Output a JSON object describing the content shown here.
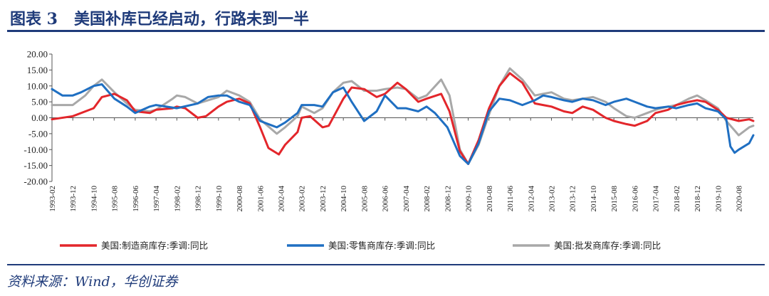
{
  "header": {
    "title": "图表 3   美国补库已经启动，行路未到一半"
  },
  "footer": {
    "source": "资料来源：Wind，华创证券"
  },
  "chart_data": {
    "type": "line",
    "ylim": [
      -20,
      20
    ],
    "ytick_values": [
      20,
      15,
      10,
      5,
      0,
      -5,
      -10,
      -15,
      -20
    ],
    "ytick_labels": [
      "20.00",
      "15.00",
      "10.00",
      "5.00",
      "0.00",
      "-5.00",
      "-10.00",
      "-15.00",
      "-20.00"
    ],
    "xlim": [
      "1993-02",
      "2021-03"
    ],
    "xtick_labels": [
      "1993-02",
      "1993-12",
      "1994-10",
      "1995-08",
      "1996-06",
      "1997-04",
      "1998-02",
      "1998-12",
      "1999-10",
      "2000-08",
      "2001-06",
      "2002-04",
      "2003-02",
      "2003-12",
      "2004-10",
      "2005-08",
      "2006-06",
      "2007-04",
      "2008-02",
      "2008-12",
      "2009-10",
      "2010-08",
      "2011-06",
      "2012-04",
      "2013-02",
      "2013-12",
      "2014-10",
      "2015-08",
      "2016-06",
      "2017-04",
      "2018-02",
      "2018-12",
      "2019-10",
      "2020-08"
    ],
    "legend_position": "bottom",
    "grid": false,
    "series": [
      {
        "name": "美国:制造商库存:季调:同比",
        "color": "#e3262b",
        "points": [
          [
            "1993-02",
            -0.5
          ],
          [
            "1993-12",
            0.5
          ],
          [
            "1994-10",
            3.0
          ],
          [
            "1995-02",
            6.5
          ],
          [
            "1995-08",
            7.5
          ],
          [
            "1996-02",
            5.5
          ],
          [
            "1996-06",
            2.0
          ],
          [
            "1997-01",
            1.5
          ],
          [
            "1997-04",
            2.5
          ],
          [
            "1997-12",
            3.0
          ],
          [
            "1998-02",
            3.5
          ],
          [
            "1998-06",
            3.0
          ],
          [
            "1998-12",
            0.0
          ],
          [
            "1999-04",
            0.5
          ],
          [
            "1999-10",
            3.5
          ],
          [
            "2000-02",
            5.0
          ],
          [
            "2000-08",
            6.0
          ],
          [
            "2001-01",
            4.5
          ],
          [
            "2001-06",
            -3.0
          ],
          [
            "2001-10",
            -9.5
          ],
          [
            "2002-03",
            -11.5
          ],
          [
            "2002-06",
            -8.5
          ],
          [
            "2002-12",
            -4.5
          ],
          [
            "2003-02",
            0.0
          ],
          [
            "2003-06",
            0.5
          ],
          [
            "2003-12",
            -3.0
          ],
          [
            "2004-03",
            -2.5
          ],
          [
            "2004-10",
            6.0
          ],
          [
            "2005-02",
            9.5
          ],
          [
            "2005-08",
            9.0
          ],
          [
            "2006-02",
            6.5
          ],
          [
            "2006-06",
            7.5
          ],
          [
            "2006-12",
            11.0
          ],
          [
            "2007-04",
            9.0
          ],
          [
            "2007-10",
            5.0
          ],
          [
            "2008-02",
            6.0
          ],
          [
            "2008-09",
            7.5
          ],
          [
            "2009-01",
            2.0
          ],
          [
            "2009-06",
            -10.5
          ],
          [
            "2009-10",
            -14.5
          ],
          [
            "2010-03",
            -7.0
          ],
          [
            "2010-08",
            3.0
          ],
          [
            "2011-01",
            10.0
          ],
          [
            "2011-06",
            14.0
          ],
          [
            "2011-12",
            11.0
          ],
          [
            "2012-06",
            4.5
          ],
          [
            "2012-10",
            4.0
          ],
          [
            "2013-02",
            3.5
          ],
          [
            "2013-08",
            2.0
          ],
          [
            "2013-12",
            1.5
          ],
          [
            "2014-05",
            3.5
          ],
          [
            "2014-10",
            2.5
          ],
          [
            "2015-04",
            0.0
          ],
          [
            "2015-08",
            -1.0
          ],
          [
            "2016-02",
            -2.0
          ],
          [
            "2016-06",
            -2.5
          ],
          [
            "2016-12",
            -1.0
          ],
          [
            "2017-04",
            1.5
          ],
          [
            "2017-10",
            2.5
          ],
          [
            "2018-02",
            4.0
          ],
          [
            "2018-08",
            5.0
          ],
          [
            "2018-12",
            5.5
          ],
          [
            "2019-04",
            5.0
          ],
          [
            "2019-10",
            2.5
          ],
          [
            "2020-02",
            0.0
          ],
          [
            "2020-08",
            -1.0
          ],
          [
            "2021-01",
            -0.5
          ],
          [
            "2021-03",
            -1.0
          ]
        ]
      },
      {
        "name": "美国:零售商库存:季调:同比",
        "color": "#1f6fc2",
        "points": [
          [
            "1993-02",
            9.0
          ],
          [
            "1993-07",
            7.0
          ],
          [
            "1993-12",
            7.0
          ],
          [
            "1994-04",
            8.0
          ],
          [
            "1994-10",
            10.0
          ],
          [
            "1995-02",
            10.5
          ],
          [
            "1995-08",
            6.0
          ],
          [
            "1996-02",
            3.5
          ],
          [
            "1996-06",
            1.5
          ],
          [
            "1997-01",
            3.5
          ],
          [
            "1997-04",
            4.0
          ],
          [
            "1998-02",
            3.0
          ],
          [
            "1998-12",
            4.5
          ],
          [
            "1999-05",
            6.5
          ],
          [
            "1999-10",
            7.0
          ],
          [
            "2000-02",
            7.0
          ],
          [
            "2000-08",
            5.0
          ],
          [
            "2001-01",
            4.0
          ],
          [
            "2001-06",
            -1.0
          ],
          [
            "2002-02",
            -3.0
          ],
          [
            "2002-06",
            -1.5
          ],
          [
            "2002-12",
            1.5
          ],
          [
            "2003-02",
            4.0
          ],
          [
            "2003-08",
            4.0
          ],
          [
            "2003-12",
            3.5
          ],
          [
            "2004-05",
            8.0
          ],
          [
            "2004-10",
            9.5
          ],
          [
            "2005-02",
            5.0
          ],
          [
            "2005-08",
            -1.0
          ],
          [
            "2006-02",
            2.0
          ],
          [
            "2006-06",
            7.0
          ],
          [
            "2006-12",
            3.0
          ],
          [
            "2007-04",
            3.0
          ],
          [
            "2007-10",
            2.0
          ],
          [
            "2008-02",
            3.5
          ],
          [
            "2008-06",
            1.5
          ],
          [
            "2008-12",
            -3.0
          ],
          [
            "2009-06",
            -12.0
          ],
          [
            "2009-10",
            -14.5
          ],
          [
            "2010-03",
            -8.0
          ],
          [
            "2010-08",
            2.0
          ],
          [
            "2011-01",
            6.0
          ],
          [
            "2011-06",
            5.5
          ],
          [
            "2011-12",
            4.0
          ],
          [
            "2012-06",
            5.5
          ],
          [
            "2012-10",
            7.0
          ],
          [
            "2013-02",
            6.5
          ],
          [
            "2013-08",
            5.5
          ],
          [
            "2013-12",
            5.0
          ],
          [
            "2014-05",
            6.0
          ],
          [
            "2014-10",
            5.5
          ],
          [
            "2015-04",
            4.0
          ],
          [
            "2015-08",
            5.0
          ],
          [
            "2016-02",
            6.0
          ],
          [
            "2016-06",
            5.0
          ],
          [
            "2016-12",
            3.5
          ],
          [
            "2017-04",
            3.0
          ],
          [
            "2017-10",
            3.5
          ],
          [
            "2018-02",
            3.0
          ],
          [
            "2018-08",
            4.0
          ],
          [
            "2018-12",
            4.5
          ],
          [
            "2019-04",
            3.0
          ],
          [
            "2019-10",
            2.0
          ],
          [
            "2020-02",
            -0.5
          ],
          [
            "2020-04",
            -9.0
          ],
          [
            "2020-06",
            -11.0
          ],
          [
            "2020-08",
            -10.0
          ],
          [
            "2021-01",
            -8.0
          ],
          [
            "2021-03",
            -5.5
          ]
        ]
      },
      {
        "name": "美国:批发商库存:季调:同比",
        "color": "#a8a8a8",
        "points": [
          [
            "1993-02",
            4.0
          ],
          [
            "1993-12",
            4.0
          ],
          [
            "1994-06",
            7.0
          ],
          [
            "1994-10",
            10.0
          ],
          [
            "1995-02",
            12.0
          ],
          [
            "1995-08",
            8.0
          ],
          [
            "1996-02",
            4.5
          ],
          [
            "1996-06",
            2.5
          ],
          [
            "1997-01",
            2.0
          ],
          [
            "1997-04",
            2.5
          ],
          [
            "1997-12",
            6.0
          ],
          [
            "1998-02",
            7.0
          ],
          [
            "1998-06",
            6.5
          ],
          [
            "1998-12",
            4.5
          ],
          [
            "1999-05",
            5.5
          ],
          [
            "1999-10",
            6.5
          ],
          [
            "2000-02",
            8.5
          ],
          [
            "2000-08",
            7.0
          ],
          [
            "2001-01",
            5.0
          ],
          [
            "2001-06",
            -0.5
          ],
          [
            "2002-02",
            -5.0
          ],
          [
            "2002-06",
            -3.0
          ],
          [
            "2002-12",
            0.5
          ],
          [
            "2003-02",
            3.5
          ],
          [
            "2003-08",
            1.5
          ],
          [
            "2003-12",
            3.0
          ],
          [
            "2004-05",
            8.0
          ],
          [
            "2004-10",
            11.0
          ],
          [
            "2005-02",
            11.5
          ],
          [
            "2005-08",
            8.5
          ],
          [
            "2006-02",
            8.5
          ],
          [
            "2006-06",
            9.0
          ],
          [
            "2006-12",
            9.5
          ],
          [
            "2007-04",
            9.0
          ],
          [
            "2007-10",
            6.0
          ],
          [
            "2008-02",
            7.0
          ],
          [
            "2008-09",
            12.0
          ],
          [
            "2009-01",
            7.0
          ],
          [
            "2009-06",
            -10.0
          ],
          [
            "2009-10",
            -14.5
          ],
          [
            "2010-03",
            -8.5
          ],
          [
            "2010-08",
            1.0
          ],
          [
            "2011-01",
            10.0
          ],
          [
            "2011-06",
            15.5
          ],
          [
            "2011-12",
            12.0
          ],
          [
            "2012-06",
            7.0
          ],
          [
            "2012-10",
            7.5
          ],
          [
            "2013-02",
            8.0
          ],
          [
            "2013-08",
            6.0
          ],
          [
            "2013-12",
            5.5
          ],
          [
            "2014-05",
            6.0
          ],
          [
            "2014-10",
            6.5
          ],
          [
            "2015-04",
            5.0
          ],
          [
            "2015-08",
            3.0
          ],
          [
            "2016-02",
            0.5
          ],
          [
            "2016-06",
            0.0
          ],
          [
            "2016-12",
            1.5
          ],
          [
            "2017-04",
            2.5
          ],
          [
            "2017-10",
            3.5
          ],
          [
            "2018-02",
            4.0
          ],
          [
            "2018-08",
            6.0
          ],
          [
            "2018-12",
            7.0
          ],
          [
            "2019-04",
            5.5
          ],
          [
            "2019-10",
            3.0
          ],
          [
            "2020-02",
            -1.0
          ],
          [
            "2020-06",
            -4.0
          ],
          [
            "2020-08",
            -5.5
          ],
          [
            "2021-01",
            -3.0
          ],
          [
            "2021-03",
            -2.5
          ]
        ]
      }
    ]
  }
}
